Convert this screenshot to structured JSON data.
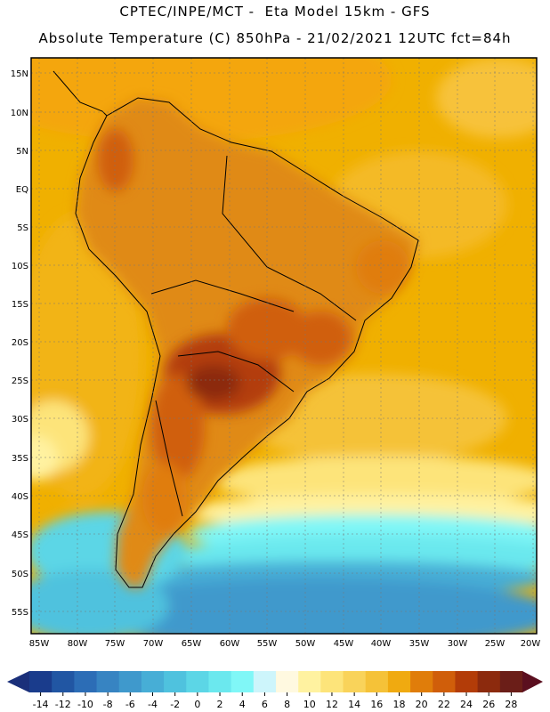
{
  "title_line1": "CPTEC/INPE/MCT -  Eta Model 15km - GFS",
  "title_line2": "Absolute Temperature (C) 850hPa - 21/02/2021 12UTC fct=84h",
  "lat_labels": [
    "15N",
    "10N",
    "5N",
    "EQ",
    "5S",
    "10S",
    "15S",
    "20S",
    "25S",
    "30S",
    "35S",
    "40S",
    "45S",
    "50S",
    "55S"
  ],
  "lon_labels": [
    "85W",
    "80W",
    "75W",
    "70W",
    "65W",
    "60W",
    "55W",
    "50W",
    "45W",
    "40W",
    "35W",
    "30W",
    "25W",
    "20W"
  ],
  "colorbar": {
    "ticks": [
      "-14",
      "-12",
      "-10",
      "-8",
      "-6",
      "-4",
      "-2",
      "0",
      "2",
      "4",
      "6",
      "8",
      "10",
      "12",
      "14",
      "16",
      "18",
      "20",
      "22",
      "24",
      "26",
      "28"
    ],
    "colors": [
      "#1a3c8c",
      "#2156a3",
      "#2c6db6",
      "#3784c2",
      "#3f99cc",
      "#47aed6",
      "#4fc2de",
      "#5cd6e6",
      "#6be8ee",
      "#80f7f7",
      "#cdf5fb",
      "#fff9e0",
      "#fff2a0",
      "#fde47a",
      "#f9d35a",
      "#f5c238",
      "#f0aa10",
      "#e07d0a",
      "#d05e0a",
      "#b33c08",
      "#8c2a0d",
      "#6b1e18"
    ],
    "left_arrow_color": "#1a2f7a",
    "right_arrow_color": "#5b0f1f"
  }
}
